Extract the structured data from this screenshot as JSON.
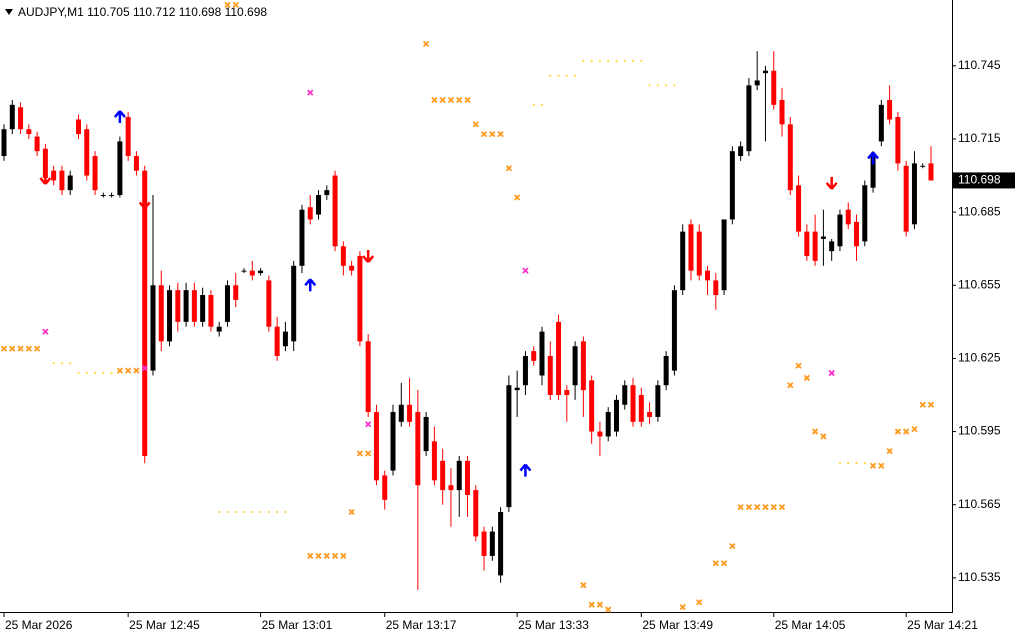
{
  "chart_data": {
    "type": "candlestick",
    "title": "AUDJPY,M1  110.705 110.712 110.698 110.698",
    "current_price": 110.698,
    "up_color": "#000000",
    "down_color": "#ff0000",
    "ylim": [
      110.521,
      110.772
    ],
    "yticks": [
      110.535,
      110.565,
      110.595,
      110.625,
      110.655,
      110.685,
      110.715,
      110.745
    ],
    "categories": [
      "25 Mar 2026",
      null,
      null,
      null,
      null,
      null,
      null,
      null,
      null,
      null,
      null,
      null,
      null,
      null,
      null,
      "25 Mar 12:45",
      null,
      null,
      null,
      null,
      null,
      null,
      null,
      null,
      null,
      null,
      null,
      null,
      null,
      null,
      null,
      "25 Mar 13:01",
      null,
      null,
      null,
      null,
      null,
      null,
      null,
      null,
      null,
      null,
      null,
      null,
      null,
      null,
      "25 Mar 13:17",
      null,
      null,
      null,
      null,
      null,
      null,
      null,
      null,
      null,
      null,
      null,
      null,
      null,
      null,
      null,
      "25 Mar 13:33",
      null,
      null,
      null,
      null,
      null,
      null,
      null,
      null,
      null,
      null,
      null,
      null,
      null,
      null,
      "25 Mar 13:49",
      null,
      null,
      null,
      null,
      null,
      null,
      null,
      null,
      null,
      null,
      null,
      null,
      null,
      null,
      null,
      "25 Mar 14:05",
      null,
      null,
      null,
      null,
      null,
      null,
      null,
      null,
      null,
      null,
      null,
      null,
      null,
      null,
      null,
      "25 Mar 14:21",
      null,
      null,
      null
    ],
    "ohlc": [
      [
        110.708,
        110.721,
        110.706,
        110.719
      ],
      [
        110.719,
        110.731,
        110.717,
        110.729
      ],
      [
        110.728,
        110.73,
        110.717,
        110.719
      ],
      [
        110.719,
        110.721,
        110.715,
        110.717
      ],
      [
        110.716,
        110.718,
        110.708,
        110.71
      ],
      [
        110.711,
        110.713,
        110.697,
        110.699
      ],
      [
        110.702,
        110.704,
        110.696,
        110.698
      ],
      [
        110.702,
        110.704,
        110.692,
        110.694
      ],
      [
        110.694,
        110.702,
        110.692,
        110.7
      ],
      [
        110.723,
        110.725,
        110.715,
        110.717
      ],
      [
        110.719,
        110.721,
        110.698,
        110.7
      ],
      [
        110.708,
        110.71,
        110.692,
        110.694
      ],
      [
        110.692,
        110.693,
        110.691,
        110.692
      ],
      [
        110.692,
        110.693,
        110.691,
        110.692
      ],
      [
        110.692,
        110.716,
        110.691,
        110.714
      ],
      [
        110.724,
        110.726,
        110.706,
        110.708
      ],
      [
        110.708,
        110.71,
        110.7,
        110.702
      ],
      [
        110.702,
        110.704,
        110.582,
        110.585
      ],
      [
        110.62,
        110.692,
        110.618,
        110.655
      ],
      [
        110.655,
        110.661,
        110.628,
        110.632
      ],
      [
        110.632,
        110.655,
        110.63,
        110.653
      ],
      [
        110.653,
        110.656,
        110.636,
        110.64
      ],
      [
        110.64,
        110.656,
        110.638,
        110.653
      ],
      [
        110.653,
        110.656,
        110.638,
        110.64
      ],
      [
        110.64,
        110.654,
        110.638,
        110.651
      ],
      [
        110.651,
        110.653,
        110.636,
        110.638
      ],
      [
        110.636,
        110.64,
        110.634,
        110.638
      ],
      [
        110.64,
        110.657,
        110.638,
        110.655
      ],
      [
        110.655,
        110.66,
        110.646,
        110.649
      ],
      [
        110.661,
        110.662,
        110.66,
        110.661
      ],
      [
        110.661,
        110.665,
        110.657,
        110.659
      ],
      [
        110.66,
        110.662,
        110.659,
        110.661
      ],
      [
        110.657,
        110.659,
        110.636,
        110.638
      ],
      [
        110.638,
        110.642,
        110.624,
        110.626
      ],
      [
        110.63,
        110.64,
        110.628,
        110.636
      ],
      [
        110.632,
        110.665,
        110.628,
        110.663
      ],
      [
        110.663,
        110.688,
        110.66,
        110.686
      ],
      [
        110.687,
        110.692,
        110.68,
        110.682
      ],
      [
        110.684,
        110.694,
        110.682,
        110.692
      ],
      [
        110.692,
        110.696,
        110.69,
        110.694
      ],
      [
        110.7,
        110.702,
        110.669,
        110.671
      ],
      [
        110.671,
        110.673,
        110.659,
        110.663
      ],
      [
        110.663,
        110.665,
        110.659,
        110.661
      ],
      [
        110.667,
        110.669,
        110.63,
        110.632
      ],
      [
        110.632,
        110.635,
        110.601,
        110.603
      ],
      [
        110.603,
        110.606,
        110.573,
        110.575
      ],
      [
        110.577,
        110.579,
        110.563,
        110.567
      ],
      [
        110.579,
        110.606,
        110.577,
        110.603
      ],
      [
        110.599,
        110.615,
        110.597,
        110.606
      ],
      [
        110.606,
        110.617,
        110.597,
        110.599
      ],
      [
        110.603,
        110.612,
        110.53,
        110.573
      ],
      [
        110.587,
        110.603,
        110.585,
        110.601
      ],
      [
        110.591,
        110.597,
        110.573,
        110.575
      ],
      [
        110.583,
        110.588,
        110.565,
        110.571
      ],
      [
        110.573,
        110.58,
        110.556,
        110.571
      ],
      [
        110.571,
        110.585,
        110.56,
        110.583
      ],
      [
        110.583,
        110.585,
        110.56,
        110.569
      ],
      [
        110.571,
        110.573,
        110.55,
        110.552
      ],
      [
        110.554,
        110.556,
        110.538,
        110.544
      ],
      [
        110.544,
        110.556,
        110.542,
        110.554
      ],
      [
        110.536,
        110.564,
        110.533,
        110.562
      ],
      [
        110.564,
        110.618,
        110.562,
        110.614
      ],
      [
        110.612,
        110.62,
        110.601,
        110.613
      ],
      [
        110.614,
        110.628,
        110.61,
        110.626
      ],
      [
        110.628,
        110.63,
        110.622,
        110.624
      ],
      [
        110.618,
        110.638,
        110.614,
        110.636
      ],
      [
        110.626,
        110.632,
        110.608,
        110.61
      ],
      [
        110.64,
        110.643,
        110.608,
        110.61
      ],
      [
        110.612,
        110.614,
        110.599,
        110.61
      ],
      [
        110.614,
        110.632,
        110.608,
        110.63
      ],
      [
        110.632,
        110.634,
        110.601,
        110.612
      ],
      [
        110.616,
        110.618,
        110.59,
        110.595
      ],
      [
        110.595,
        110.599,
        110.585,
        110.593
      ],
      [
        110.593,
        110.605,
        110.591,
        110.603
      ],
      [
        110.595,
        110.61,
        110.593,
        110.608
      ],
      [
        110.606,
        110.616,
        110.604,
        110.614
      ],
      [
        110.614,
        110.617,
        110.597,
        110.599
      ],
      [
        110.61,
        110.613,
        110.597,
        110.599
      ],
      [
        110.603,
        110.607,
        110.598,
        110.601
      ],
      [
        110.601,
        110.616,
        110.599,
        110.614
      ],
      [
        110.614,
        110.628,
        110.612,
        110.626
      ],
      [
        110.62,
        110.655,
        110.618,
        110.653
      ],
      [
        110.653,
        110.68,
        110.651,
        110.677
      ],
      [
        110.68,
        110.682,
        110.657,
        110.661
      ],
      [
        110.677,
        110.68,
        110.657,
        110.659
      ],
      [
        110.661,
        110.663,
        110.651,
        110.657
      ],
      [
        110.657,
        110.66,
        110.645,
        110.651
      ],
      [
        110.653,
        110.682,
        110.651,
        110.682
      ],
      [
        110.682,
        110.712,
        110.68,
        110.71
      ],
      [
        110.708,
        110.714,
        110.706,
        110.712
      ],
      [
        110.71,
        110.74,
        110.708,
        110.737
      ],
      [
        110.737,
        110.751,
        110.735,
        110.739
      ],
      [
        110.742,
        110.745,
        110.714,
        110.743
      ],
      [
        110.743,
        110.751,
        110.727,
        110.729
      ],
      [
        110.731,
        110.736,
        110.716,
        110.721
      ],
      [
        110.721,
        110.724,
        110.692,
        110.694
      ],
      [
        110.696,
        110.7,
        110.675,
        110.677
      ],
      [
        110.677,
        110.68,
        110.665,
        110.667
      ],
      [
        110.677,
        110.684,
        110.663,
        110.665
      ],
      [
        110.674,
        110.686,
        110.663,
        110.675
      ],
      [
        110.669,
        110.674,
        110.665,
        110.673
      ],
      [
        110.671,
        110.686,
        110.669,
        110.684
      ],
      [
        110.686,
        110.689,
        110.678,
        110.68
      ],
      [
        110.681,
        110.684,
        110.665,
        110.671
      ],
      [
        110.673,
        110.698,
        110.671,
        110.696
      ],
      [
        110.695,
        110.71,
        110.693,
        110.708
      ],
      [
        110.714,
        110.731,
        110.712,
        110.729
      ],
      [
        110.731,
        110.737,
        110.721,
        110.723
      ],
      [
        110.724,
        110.726,
        110.702,
        110.705
      ],
      [
        110.704,
        110.706,
        110.675,
        110.677
      ],
      [
        110.68,
        110.71,
        110.678,
        110.705
      ],
      [
        110.704,
        110.705,
        110.703,
        110.704
      ],
      [
        110.705,
        110.712,
        110.698,
        110.698
      ]
    ],
    "markers": [
      {
        "shape": "up-arrow",
        "color": "#0000ff",
        "points": [
          [
            14,
            110.724
          ],
          [
            37,
            110.655
          ],
          [
            63,
            110.579
          ],
          [
            105,
            110.707
          ]
        ]
      },
      {
        "shape": "down-arrow",
        "color": "#ff0000",
        "points": [
          [
            5,
            110.699
          ],
          [
            17,
            110.689
          ],
          [
            44,
            110.667
          ],
          [
            100,
            110.697
          ]
        ]
      },
      {
        "shape": "cross",
        "color": "#ff33cc",
        "points": [
          [
            37,
            110.734
          ],
          [
            5,
            110.636
          ],
          [
            17,
            110.621
          ],
          [
            44,
            110.598
          ],
          [
            63,
            110.661
          ],
          [
            100,
            110.619
          ]
        ]
      },
      {
        "shape": "cross",
        "color": "#ff9a1e",
        "points": [
          [
            0,
            110.629
          ],
          [
            1,
            110.629
          ],
          [
            2,
            110.629
          ],
          [
            3,
            110.629
          ],
          [
            4,
            110.629
          ],
          [
            14,
            110.62
          ],
          [
            15,
            110.62
          ],
          [
            16,
            110.62
          ],
          [
            27,
            110.77
          ],
          [
            28,
            110.77
          ],
          [
            51,
            110.754
          ],
          [
            52,
            110.731
          ],
          [
            53,
            110.731
          ],
          [
            54,
            110.731
          ],
          [
            55,
            110.731
          ],
          [
            56,
            110.731
          ],
          [
            57,
            110.721
          ],
          [
            58,
            110.717
          ],
          [
            59,
            110.717
          ],
          [
            60,
            110.717
          ],
          [
            61,
            110.703
          ],
          [
            62,
            110.691
          ],
          [
            43,
            110.586
          ],
          [
            44,
            110.586
          ],
          [
            42,
            110.562
          ],
          [
            37,
            110.544
          ],
          [
            38,
            110.544
          ],
          [
            39,
            110.544
          ],
          [
            40,
            110.544
          ],
          [
            41,
            110.544
          ],
          [
            70,
            110.532
          ],
          [
            71,
            110.524
          ],
          [
            72,
            110.524
          ],
          [
            73,
            110.522
          ],
          [
            82,
            110.523
          ],
          [
            84,
            110.525
          ],
          [
            86,
            110.541
          ],
          [
            87,
            110.541
          ],
          [
            88,
            110.548
          ],
          [
            89,
            110.564
          ],
          [
            90,
            110.564
          ],
          [
            91,
            110.564
          ],
          [
            92,
            110.564
          ],
          [
            93,
            110.564
          ],
          [
            94,
            110.564
          ],
          [
            95,
            110.614
          ],
          [
            96,
            110.622
          ],
          [
            97,
            110.617
          ],
          [
            98,
            110.595
          ],
          [
            99,
            110.593
          ],
          [
            105,
            110.581
          ],
          [
            106,
            110.581
          ],
          [
            107,
            110.587
          ],
          [
            108,
            110.595
          ],
          [
            109,
            110.595
          ],
          [
            110,
            110.596
          ],
          [
            111,
            110.606
          ],
          [
            112,
            110.606
          ]
        ]
      },
      {
        "shape": "dot",
        "color": "#ffd21e",
        "points": [
          [
            6,
            110.623
          ],
          [
            7,
            110.623
          ],
          [
            8,
            110.623
          ],
          [
            9,
            110.619
          ],
          [
            10,
            110.619
          ],
          [
            11,
            110.619
          ],
          [
            12,
            110.619
          ],
          [
            13,
            110.619
          ],
          [
            26,
            110.562
          ],
          [
            27,
            110.562
          ],
          [
            28,
            110.562
          ],
          [
            29,
            110.562
          ],
          [
            30,
            110.562
          ],
          [
            31,
            110.562
          ],
          [
            32,
            110.562
          ],
          [
            33,
            110.562
          ],
          [
            34,
            110.562
          ],
          [
            64,
            110.729
          ],
          [
            65,
            110.729
          ],
          [
            66,
            110.741
          ],
          [
            67,
            110.741
          ],
          [
            68,
            110.741
          ],
          [
            69,
            110.741
          ],
          [
            70,
            110.747
          ],
          [
            71,
            110.747
          ],
          [
            72,
            110.747
          ],
          [
            73,
            110.747
          ],
          [
            74,
            110.747
          ],
          [
            75,
            110.747
          ],
          [
            76,
            110.747
          ],
          [
            77,
            110.747
          ],
          [
            78,
            110.737
          ],
          [
            79,
            110.737
          ],
          [
            80,
            110.737
          ],
          [
            81,
            110.737
          ],
          [
            101,
            110.582
          ],
          [
            102,
            110.582
          ],
          [
            103,
            110.582
          ],
          [
            104,
            110.582
          ]
        ]
      }
    ]
  }
}
